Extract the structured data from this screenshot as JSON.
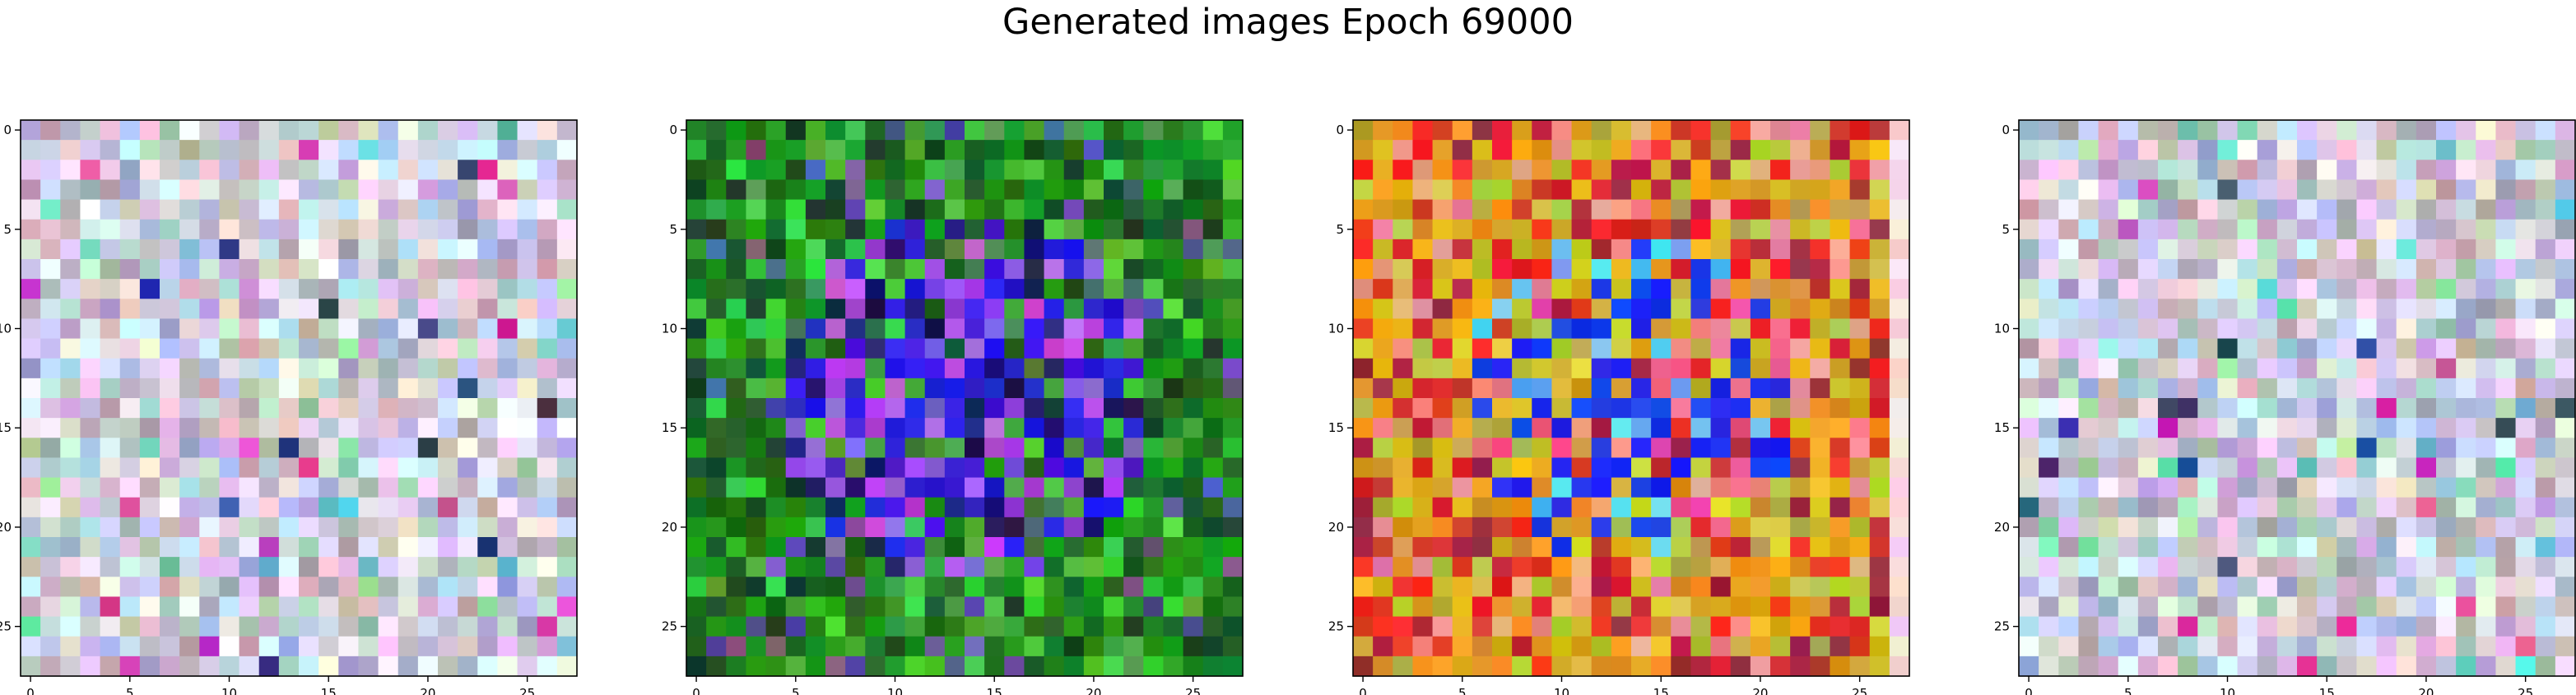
{
  "figure": {
    "title": "Generated images Epoch 69000"
  },
  "chart_data": [
    {
      "type": "heatmap",
      "content": "rgb-image",
      "description_palette": "pastel-noise",
      "grid_size": [
        28,
        28
      ],
      "xlim": [
        -0.5,
        27.5
      ],
      "ylim": [
        27.5,
        -0.5
      ],
      "xticks": [
        0,
        5,
        10,
        15,
        20,
        25
      ],
      "yticks": [
        0,
        5,
        10,
        15,
        20,
        25
      ],
      "x_tick_labels": [
        "0",
        "5",
        "10",
        "15",
        "20",
        "25"
      ],
      "y_tick_labels": [
        "0",
        "5",
        "10",
        "15",
        "20",
        "25"
      ],
      "seed": 11
    },
    {
      "type": "heatmap",
      "content": "rgb-image",
      "description_palette": "green-border-blue-center",
      "grid_size": [
        28,
        28
      ],
      "xlim": [
        -0.5,
        27.5
      ],
      "ylim": [
        27.5,
        -0.5
      ],
      "xticks": [
        0,
        5,
        10,
        15,
        20,
        25
      ],
      "yticks": [
        0,
        5,
        10,
        15,
        20,
        25
      ],
      "x_tick_labels": [
        "0",
        "5",
        "10",
        "15",
        "20",
        "25"
      ],
      "y_tick_labels": [
        "0",
        "5",
        "10",
        "15",
        "20",
        "25"
      ],
      "seed": 23
    },
    {
      "type": "heatmap",
      "content": "rgb-image",
      "description_palette": "warm-border-blue-center",
      "grid_size": [
        28,
        28
      ],
      "xlim": [
        -0.5,
        27.5
      ],
      "ylim": [
        27.5,
        -0.5
      ],
      "xticks": [
        0,
        5,
        10,
        15,
        20,
        25
      ],
      "yticks": [
        0,
        5,
        10,
        15,
        20,
        25
      ],
      "x_tick_labels": [
        "0",
        "5",
        "10",
        "15",
        "20",
        "25"
      ],
      "y_tick_labels": [
        "0",
        "5",
        "10",
        "15",
        "20",
        "25"
      ],
      "seed": 37
    },
    {
      "type": "heatmap",
      "content": "rgb-image",
      "description_palette": "pastel-noise",
      "grid_size": [
        28,
        28
      ],
      "xlim": [
        -0.5,
        27.5
      ],
      "ylim": [
        27.5,
        -0.5
      ],
      "xticks": [
        0,
        5,
        10,
        15,
        20,
        25
      ],
      "yticks": [
        0,
        5,
        10,
        15,
        20,
        25
      ],
      "x_tick_labels": [
        "0",
        "5",
        "10",
        "15",
        "20",
        "25"
      ],
      "y_tick_labels": [
        "0",
        "5",
        "10",
        "15",
        "20",
        "25"
      ],
      "seed": 53
    }
  ]
}
